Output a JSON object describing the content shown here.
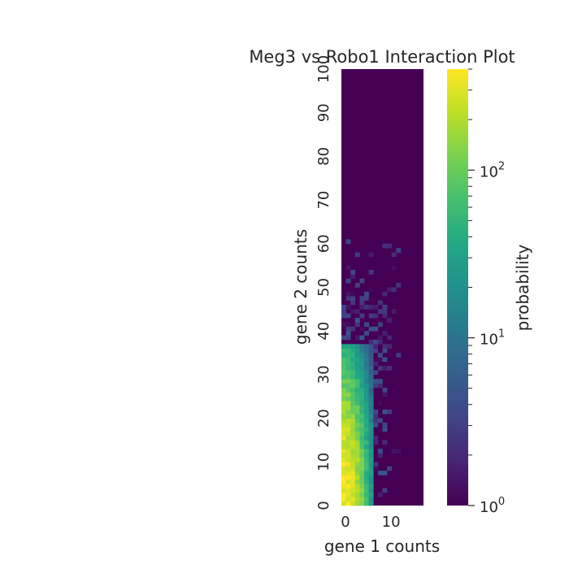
{
  "chart_data": {
    "type": "heatmap",
    "title": "Meg3 vs Robo1 Interaction Plot",
    "xlabel": "gene 1 counts",
    "ylabel": "gene 2 counts",
    "xlim": [
      0,
      18
    ],
    "ylim": [
      0,
      100
    ],
    "x_ticks": [
      0,
      10
    ],
    "y_ticks": [
      0,
      10,
      20,
      30,
      40,
      50,
      60,
      70,
      80,
      90,
      100
    ],
    "colorbar": {
      "label": "probability",
      "scale": "log",
      "range": [
        1,
        400
      ],
      "major_ticks": [
        {
          "base": "10",
          "exp": "0",
          "value": 1
        },
        {
          "base": "10",
          "exp": "1",
          "value": 10
        },
        {
          "base": "10",
          "exp": "2",
          "value": 100
        }
      ],
      "colormap": "viridis",
      "colors": [
        "#440154",
        "#482475",
        "#414487",
        "#355f8d",
        "#2a788e",
        "#21918c",
        "#22a884",
        "#44bf70",
        "#7ad151",
        "#bddf26",
        "#fde725"
      ]
    },
    "background_value": 1,
    "density_model": "counts concentrated near gene 1 = 0..6 and gene 2 = 0..35, sparse scattered cells up to gene 2 ≈ 60, remainder of grid at minimum probability"
  }
}
